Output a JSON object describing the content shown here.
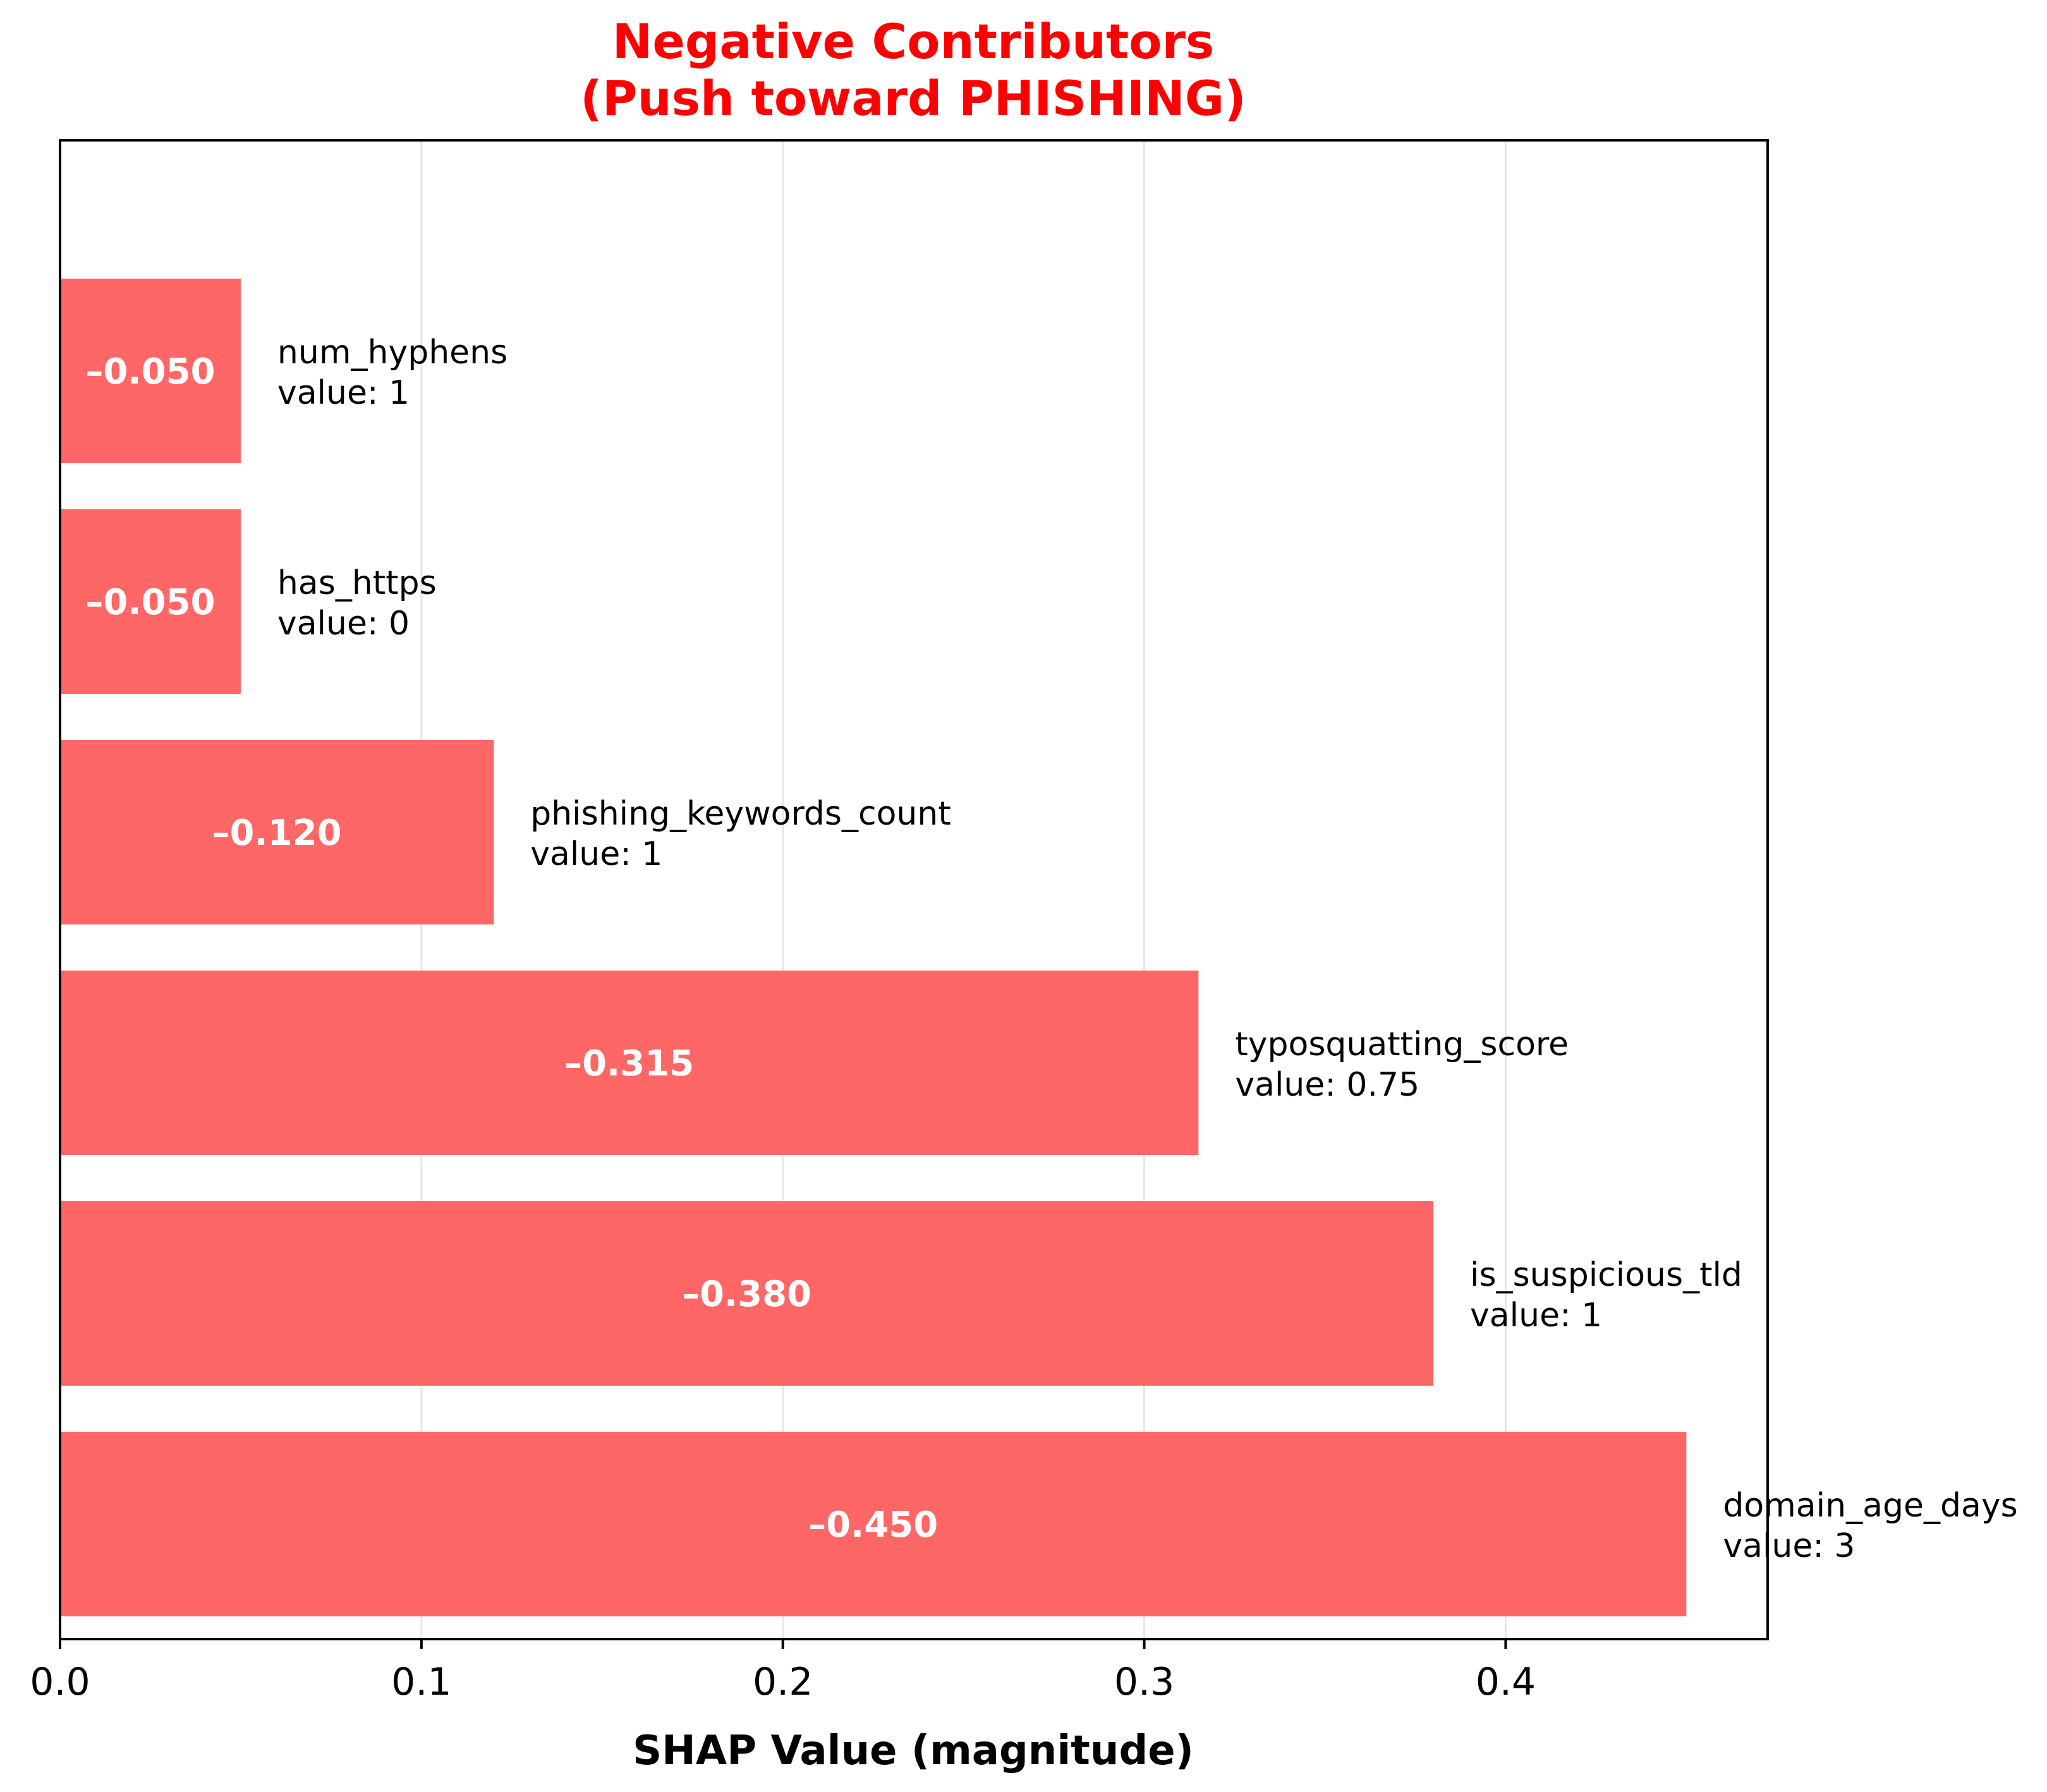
{
  "colors": {
    "title": "#ff0000",
    "bar": "#ff6666",
    "grid": "#e6e6e6",
    "axis": "#000000",
    "bar_value_text": "#ffffff"
  },
  "chart_data": {
    "type": "bar",
    "orientation": "horizontal",
    "title_line1": "Negative Contributors",
    "title_line2": "(Push toward PHISHING)",
    "xlabel": "SHAP Value (magnitude)",
    "ylabel": "",
    "xlim": [
      0,
      0.4725
    ],
    "xticks": [
      0.0,
      0.1,
      0.2,
      0.3,
      0.4
    ],
    "xtick_labels": [
      "0.0",
      "0.1",
      "0.2",
      "0.3",
      "0.4"
    ],
    "grid": "vertical",
    "bars": [
      {
        "feature": "domain_age_days",
        "value_text": "value: 3",
        "magnitude": 0.45,
        "label": "–0.450"
      },
      {
        "feature": "is_suspicious_tld",
        "value_text": "value: 1",
        "magnitude": 0.38,
        "label": "–0.380"
      },
      {
        "feature": "typosquatting_score",
        "value_text": "value: 0.75",
        "magnitude": 0.315,
        "label": "–0.315"
      },
      {
        "feature": "phishing_keywords_count",
        "value_text": "value: 1",
        "magnitude": 0.12,
        "label": "–0.120"
      },
      {
        "feature": "has_https",
        "value_text": "value: 0",
        "magnitude": 0.05,
        "label": "–0.050"
      },
      {
        "feature": "num_hyphens",
        "value_text": "value: 1",
        "magnitude": 0.05,
        "label": "–0.050"
      }
    ]
  }
}
